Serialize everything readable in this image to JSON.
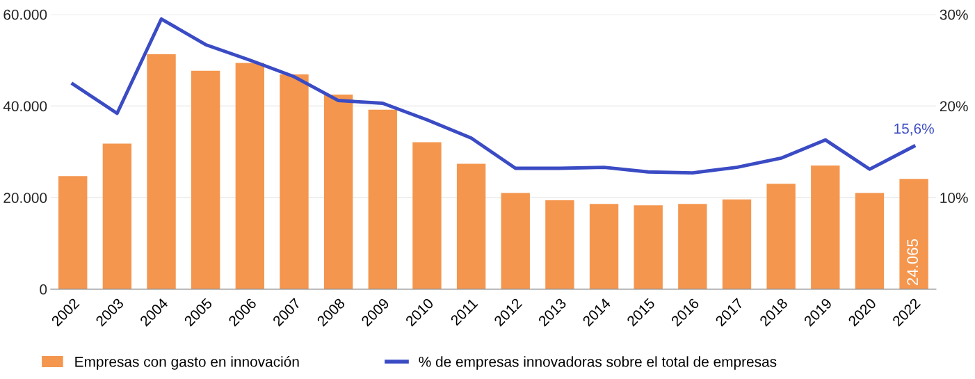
{
  "chart_data": {
    "type": "bar",
    "categories": [
      "2002",
      "2003",
      "2004",
      "2005",
      "2006",
      "2007",
      "2008",
      "2009",
      "2010",
      "2011",
      "2012",
      "2013",
      "2014",
      "2015",
      "2016",
      "2017",
      "2018",
      "2019",
      "2020",
      "2022"
    ],
    "series": [
      {
        "name": "Empresas con gasto en innovación",
        "color": "#f4964e",
        "values": [
          24700,
          31800,
          51300,
          47700,
          49400,
          46900,
          42500,
          39200,
          32100,
          27400,
          21000,
          19400,
          18600,
          18300,
          18600,
          19600,
          23000,
          27000,
          21000,
          24065
        ],
        "value_labels": [
          null,
          null,
          null,
          null,
          null,
          null,
          null,
          null,
          null,
          null,
          null,
          null,
          null,
          null,
          null,
          null,
          null,
          null,
          null,
          "24.065"
        ]
      },
      {
        "name": "% de empresas innovadoras sobre el total de empresas",
        "type": "line",
        "axis": "y2",
        "color": "#3a4bc4",
        "values": [
          22.4,
          19.2,
          29.5,
          26.7,
          25.0,
          23.2,
          20.6,
          20.3,
          18.5,
          16.5,
          13.2,
          13.2,
          13.3,
          12.8,
          12.7,
          13.3,
          14.3,
          16.3,
          13.1,
          15.6
        ],
        "value_labels": [
          null,
          null,
          null,
          null,
          null,
          null,
          null,
          null,
          null,
          null,
          null,
          null,
          null,
          null,
          null,
          null,
          null,
          null,
          null,
          "15,6%"
        ]
      }
    ],
    "ylim": [
      0,
      60000
    ],
    "yticks": [
      {
        "value": 0,
        "label": "0"
      },
      {
        "value": 20000,
        "label": "20.000"
      },
      {
        "value": 40000,
        "label": "40.000"
      },
      {
        "value": 60000,
        "label": "60.000"
      }
    ],
    "y2lim": [
      0,
      30
    ],
    "y2ticks": [
      {
        "value": 10,
        "label": "10%"
      },
      {
        "value": 20,
        "label": "20%"
      },
      {
        "value": 30,
        "label": "30%"
      }
    ],
    "grid": "y",
    "legend": "bottom",
    "marker": "none",
    "line_style": "solid"
  }
}
